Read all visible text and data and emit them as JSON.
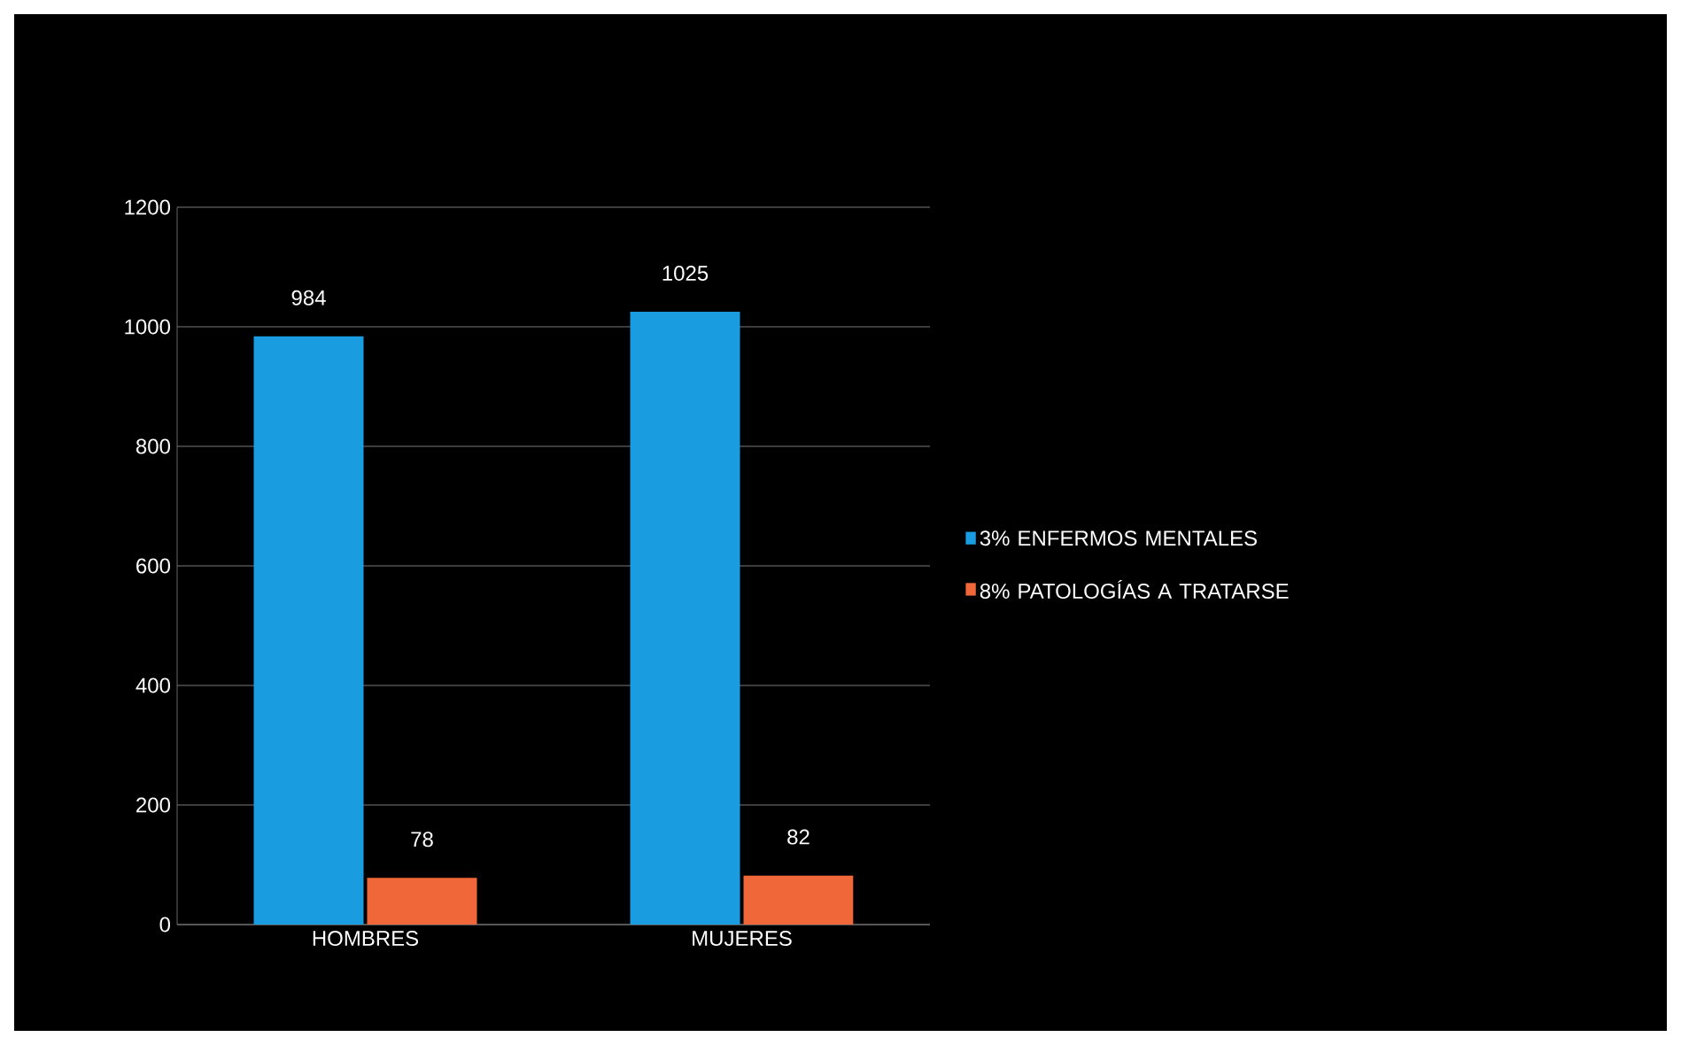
{
  "chart_data": {
    "type": "bar",
    "categories": [
      "HOMBRES",
      "MUJERES"
    ],
    "series": [
      {
        "name": "3% ENFERMOS MENTALES",
        "color": "#1a9de0",
        "values": [
          984,
          1025
        ]
      },
      {
        "name": "8% PATOLOGÍAS A TRATARSE",
        "color": "#f0673a",
        "values": [
          78,
          82
        ]
      }
    ],
    "ylim": [
      0,
      1200
    ],
    "yticks": [
      0,
      200,
      400,
      600,
      800,
      1000,
      1200
    ],
    "grid": "y",
    "legend": "right",
    "data_labels": true
  }
}
